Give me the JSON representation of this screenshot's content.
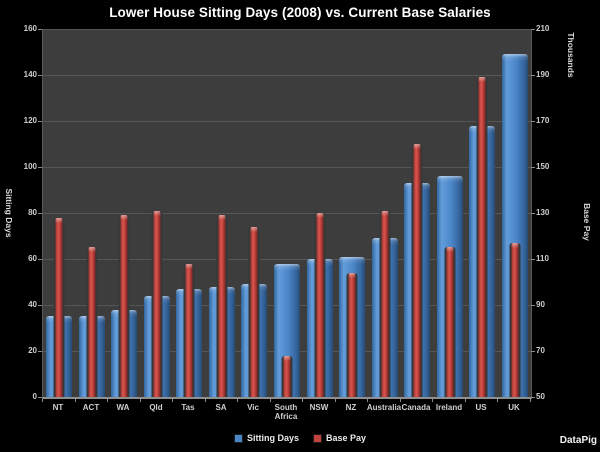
{
  "title": "Lower House Sitting Days (2008) vs. Current Base Salaries",
  "watermark": "DataPig",
  "legend": {
    "items": [
      {
        "label": "Sitting Days",
        "color": "#4a86c8"
      },
      {
        "label": "Base Pay",
        "color": "#c2433d"
      }
    ]
  },
  "chart_data": {
    "type": "bar",
    "title": "Lower House Sitting Days (2008) vs. Current Base Salaries",
    "categories": [
      "NT",
      "ACT",
      "WA",
      "Qld",
      "Tas",
      "SA",
      "Vic",
      "South Africa",
      "NSW",
      "NZ",
      "Australia",
      "Canada",
      "Ireland",
      "US",
      "UK"
    ],
    "series": [
      {
        "name": "Sitting Days",
        "axis": "left",
        "color": "#4a86c8",
        "values": [
          35,
          35,
          38,
          44,
          47,
          48,
          49,
          58,
          60,
          61,
          69,
          93,
          96,
          118,
          149
        ]
      },
      {
        "name": "Base Pay",
        "axis": "right",
        "color": "#c2433d",
        "values": [
          128,
          115,
          129,
          131,
          108,
          129,
          124,
          68,
          130,
          104,
          131,
          160,
          115,
          189,
          117
        ]
      }
    ],
    "left_axis": {
      "label": "Sitting Days",
      "min": 0,
      "max": 160,
      "step": 20,
      "ticks": [
        160,
        140,
        120,
        100,
        80,
        60,
        40,
        20,
        0
      ]
    },
    "right_axis": {
      "label": "Base Pay",
      "units_label": "Thousands",
      "min": 50,
      "max": 210,
      "step": 20,
      "ticks": [
        210,
        190,
        170,
        150,
        130,
        110,
        90,
        70,
        50
      ]
    },
    "grid": true,
    "legend_position": "bottom",
    "colors": {
      "page_bg": "#000000",
      "plot_bg": "#3d3d3d",
      "gridline": "#565656",
      "text": "#cfcfcf",
      "title_text": "#ffffff"
    }
  }
}
